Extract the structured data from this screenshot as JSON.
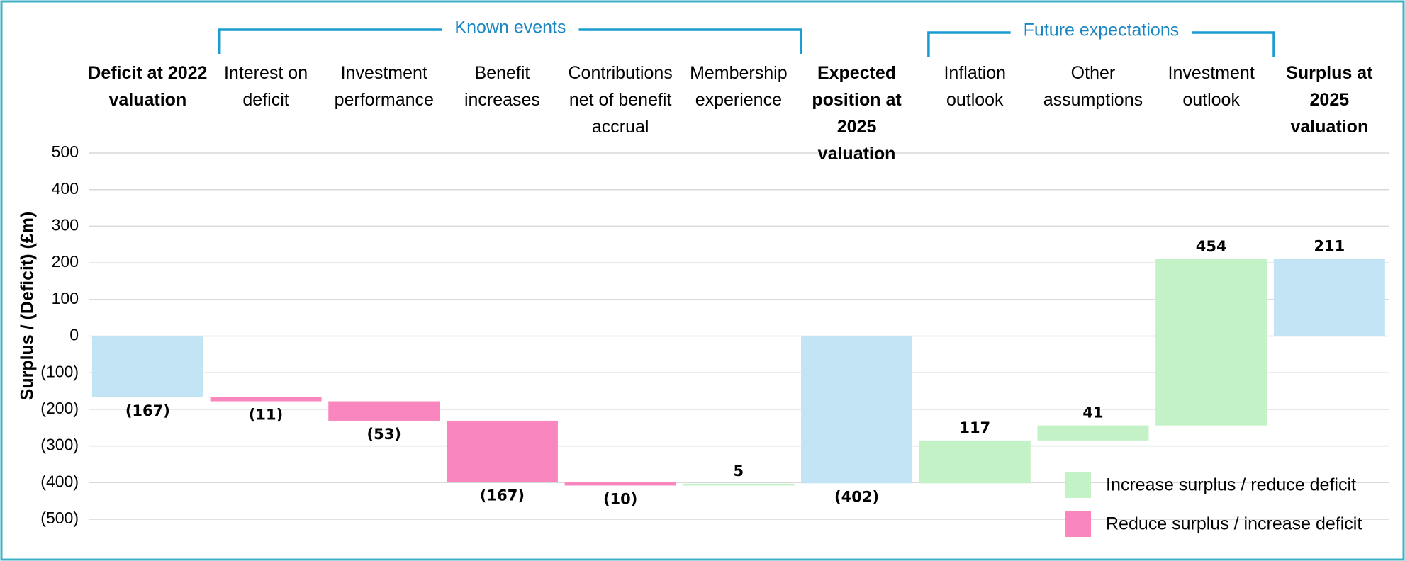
{
  "chart_data": {
    "type": "waterfall",
    "y_axis_label": "Surplus / (Deficit) (£m)",
    "categories": [
      "Deficit at 2022\nvaluation",
      "Interest on\ndeficit",
      "Investment\nperformance",
      "Benefit\nincreases",
      "Contributions\nnet of benefit\naccrual",
      "Membership\nexperience",
      "Expected\nposition at\n2025 valuation",
      "Inflation\noutlook",
      "Other\nassumptions",
      "Investment\noutlook",
      "Surplus at\n2025 valuation"
    ],
    "values": [
      -167,
      -11,
      -53,
      -167,
      -10,
      5,
      -402,
      117,
      41,
      454,
      211
    ],
    "value_labels": [
      "(167)",
      "(11)",
      "(53)",
      "(167)",
      "(10)",
      "5",
      "(402)",
      "117",
      "41",
      "454",
      "211"
    ],
    "totals": [
      true,
      false,
      false,
      false,
      false,
      false,
      true,
      false,
      false,
      false,
      true
    ],
    "total_color": "#c2e4f5",
    "legend": [
      {
        "name": "Increase surplus / reduce deficit",
        "color": "#c2f2c6"
      },
      {
        "name": "Reduce surplus / increase deficit",
        "color": "#f986be"
      }
    ],
    "groups": [
      {
        "label": "Known events",
        "from": 1,
        "to": 5
      },
      {
        "label": "Future expectations",
        "from": 7,
        "to": 9
      }
    ],
    "ylim": [
      -500,
      500
    ],
    "yticks": [
      {
        "value": -500,
        "label": "(500)"
      },
      {
        "value": -400,
        "label": "(400)"
      },
      {
        "value": -300,
        "label": "(300)"
      },
      {
        "value": -200,
        "label": "(200)"
      },
      {
        "value": -100,
        "label": "(100)"
      },
      0,
      100,
      200,
      300,
      400,
      500
    ],
    "grid": true
  }
}
